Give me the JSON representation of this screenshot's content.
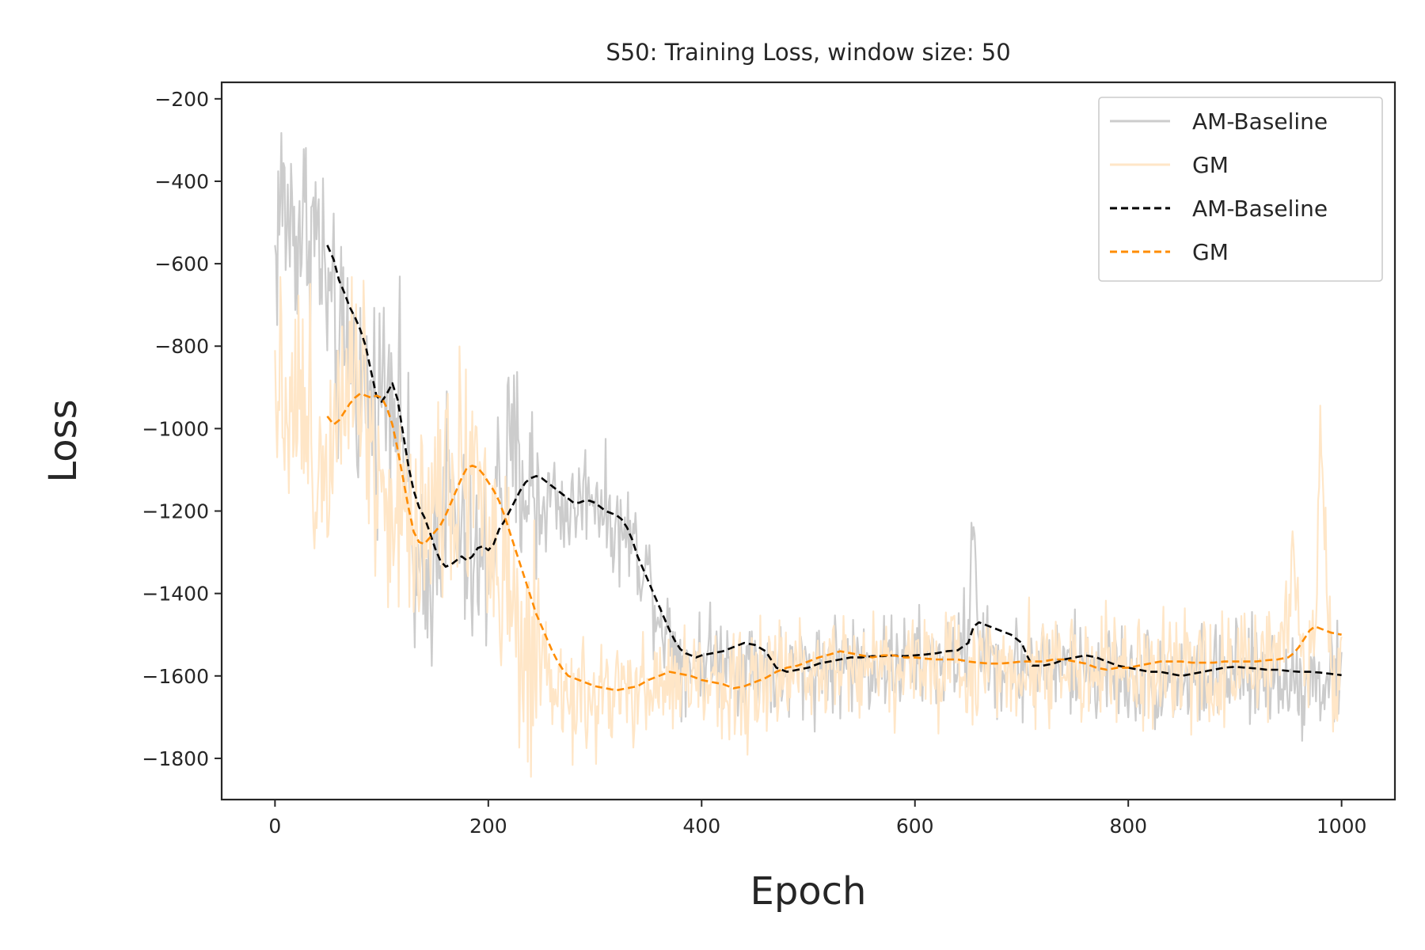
{
  "chart_data": {
    "type": "line",
    "title": "S50: Training Loss, window size: 50",
    "xlabel": "Epoch",
    "ylabel": "Loss",
    "xlim": [
      -50,
      1050
    ],
    "ylim": [
      -1900,
      -160
    ],
    "xticks": [
      0,
      200,
      400,
      600,
      800,
      1000
    ],
    "yticks": [
      -200,
      -400,
      -600,
      -800,
      -1000,
      -1200,
      -1400,
      -1600,
      -1800
    ],
    "grid": false,
    "legend_position": "top-right",
    "series": [
      {
        "name": "AM-Baseline",
        "style": "solid",
        "color": "#cccccc",
        "noise": 90,
        "x": [
          0,
          5,
          10,
          20,
          30,
          40,
          50,
          60,
          70,
          80,
          90,
          100,
          110,
          120,
          130,
          140,
          150,
          160,
          170,
          180,
          190,
          200,
          210,
          220,
          230,
          240,
          250,
          260,
          270,
          280,
          290,
          300,
          310,
          320,
          330,
          340,
          350,
          360,
          370,
          380,
          390,
          400,
          420,
          440,
          460,
          480,
          500,
          520,
          540,
          560,
          580,
          600,
          620,
          640,
          650,
          655,
          660,
          665,
          680,
          700,
          720,
          740,
          760,
          780,
          800,
          820,
          840,
          860,
          880,
          900,
          920,
          940,
          960,
          980,
          1000
        ],
        "y": [
          -600,
          -430,
          -480,
          -520,
          -500,
          -540,
          -700,
          -850,
          -800,
          -900,
          -950,
          -900,
          -850,
          -1000,
          -1350,
          -1450,
          -1250,
          -1150,
          -1250,
          -1300,
          -1350,
          -1300,
          -1150,
          -1100,
          -1100,
          -1150,
          -1200,
          -1150,
          -1200,
          -1200,
          -1150,
          -1150,
          -1200,
          -1250,
          -1250,
          -1300,
          -1350,
          -1450,
          -1500,
          -1550,
          -1560,
          -1550,
          -1560,
          -1570,
          -1580,
          -1600,
          -1580,
          -1570,
          -1570,
          -1570,
          -1570,
          -1570,
          -1560,
          -1550,
          -1500,
          -1200,
          -1500,
          -1560,
          -1580,
          -1580,
          -1580,
          -1580,
          -1580,
          -1590,
          -1600,
          -1600,
          -1610,
          -1600,
          -1600,
          -1600,
          -1600,
          -1600,
          -1610,
          -1610,
          -1610
        ]
      },
      {
        "name": "GM",
        "style": "solid",
        "color": "#ffe6c7",
        "noise": 100,
        "x": [
          0,
          5,
          10,
          20,
          30,
          40,
          50,
          60,
          70,
          80,
          90,
          100,
          110,
          120,
          130,
          140,
          150,
          160,
          170,
          180,
          190,
          200,
          210,
          220,
          230,
          240,
          250,
          260,
          270,
          280,
          290,
          300,
          320,
          340,
          360,
          380,
          400,
          420,
          440,
          460,
          480,
          500,
          520,
          540,
          560,
          580,
          600,
          620,
          640,
          660,
          680,
          700,
          720,
          740,
          760,
          780,
          800,
          820,
          840,
          860,
          880,
          900,
          920,
          940,
          950,
          955,
          960,
          965,
          975,
          980,
          990,
          1000
        ],
        "y": [
          -800,
          -900,
          -900,
          -900,
          -1000,
          -1100,
          -1050,
          -850,
          -800,
          -850,
          -1000,
          -1150,
          -1200,
          -1250,
          -1200,
          -1200,
          -1150,
          -1100,
          -1100,
          -1050,
          -1100,
          -1250,
          -1350,
          -1450,
          -1550,
          -1600,
          -1600,
          -1650,
          -1650,
          -1650,
          -1680,
          -1650,
          -1650,
          -1650,
          -1620,
          -1610,
          -1610,
          -1610,
          -1620,
          -1610,
          -1600,
          -1570,
          -1560,
          -1560,
          -1570,
          -1570,
          -1570,
          -1580,
          -1580,
          -1580,
          -1570,
          -1570,
          -1570,
          -1570,
          -1580,
          -1590,
          -1600,
          -1600,
          -1600,
          -1590,
          -1590,
          -1590,
          -1580,
          -1560,
          -1450,
          -1250,
          -1450,
          -1570,
          -1500,
          -1050,
          -1550,
          -1600
        ]
      },
      {
        "name": "AM-Baseline",
        "style": "dashed",
        "color": "#000000",
        "x": [
          49,
          55,
          60,
          65,
          70,
          75,
          80,
          85,
          90,
          95,
          100,
          105,
          110,
          115,
          120,
          125,
          130,
          135,
          140,
          145,
          150,
          155,
          160,
          165,
          170,
          175,
          180,
          185,
          190,
          195,
          200,
          205,
          210,
          215,
          220,
          225,
          230,
          235,
          240,
          245,
          250,
          255,
          260,
          265,
          270,
          275,
          280,
          285,
          290,
          295,
          300,
          305,
          310,
          315,
          320,
          325,
          330,
          335,
          340,
          345,
          350,
          355,
          360,
          365,
          370,
          375,
          380,
          385,
          390,
          395,
          400,
          410,
          420,
          430,
          440,
          450,
          460,
          470,
          480,
          490,
          500,
          510,
          520,
          530,
          540,
          550,
          560,
          570,
          580,
          590,
          600,
          610,
          620,
          630,
          640,
          650,
          655,
          660,
          670,
          680,
          690,
          700,
          705,
          710,
          720,
          730,
          740,
          750,
          760,
          770,
          780,
          790,
          800,
          810,
          820,
          830,
          840,
          850,
          860,
          870,
          880,
          890,
          900,
          910,
          920,
          930,
          940,
          950,
          960,
          970,
          980,
          990,
          1000
        ],
        "y": [
          -555,
          -590,
          -640,
          -670,
          -705,
          -730,
          -760,
          -800,
          -860,
          -920,
          -935,
          -915,
          -890,
          -930,
          -1010,
          -1090,
          -1150,
          -1190,
          -1215,
          -1250,
          -1290,
          -1320,
          -1335,
          -1330,
          -1320,
          -1310,
          -1320,
          -1310,
          -1290,
          -1285,
          -1295,
          -1280,
          -1245,
          -1225,
          -1200,
          -1175,
          -1150,
          -1130,
          -1120,
          -1115,
          -1120,
          -1130,
          -1140,
          -1150,
          -1160,
          -1170,
          -1180,
          -1180,
          -1175,
          -1175,
          -1180,
          -1190,
          -1200,
          -1205,
          -1210,
          -1220,
          -1240,
          -1270,
          -1310,
          -1340,
          -1370,
          -1400,
          -1430,
          -1460,
          -1490,
          -1515,
          -1535,
          -1545,
          -1550,
          -1555,
          -1550,
          -1545,
          -1540,
          -1530,
          -1520,
          -1525,
          -1540,
          -1580,
          -1590,
          -1585,
          -1580,
          -1570,
          -1565,
          -1560,
          -1555,
          -1555,
          -1552,
          -1552,
          -1550,
          -1552,
          -1550,
          -1548,
          -1545,
          -1540,
          -1538,
          -1520,
          -1480,
          -1470,
          -1480,
          -1490,
          -1500,
          -1520,
          -1550,
          -1575,
          -1575,
          -1570,
          -1560,
          -1555,
          -1550,
          -1555,
          -1565,
          -1575,
          -1580,
          -1585,
          -1590,
          -1590,
          -1595,
          -1600,
          -1595,
          -1590,
          -1585,
          -1580,
          -1578,
          -1580,
          -1582,
          -1585,
          -1585,
          -1588,
          -1590,
          -1590,
          -1592,
          -1595,
          -1598
        ]
      },
      {
        "name": "GM",
        "style": "dashed",
        "color": "#ff8c00",
        "x": [
          49,
          55,
          60,
          65,
          70,
          75,
          80,
          85,
          90,
          95,
          100,
          105,
          110,
          115,
          120,
          125,
          130,
          135,
          140,
          145,
          150,
          155,
          160,
          165,
          170,
          175,
          180,
          185,
          190,
          195,
          200,
          205,
          210,
          215,
          220,
          225,
          230,
          235,
          240,
          245,
          250,
          255,
          260,
          265,
          270,
          275,
          280,
          285,
          290,
          295,
          300,
          310,
          320,
          330,
          340,
          350,
          360,
          370,
          380,
          390,
          400,
          410,
          420,
          430,
          440,
          450,
          460,
          470,
          480,
          490,
          500,
          510,
          520,
          530,
          540,
          550,
          560,
          570,
          580,
          590,
          600,
          610,
          620,
          630,
          640,
          650,
          660,
          670,
          680,
          690,
          700,
          710,
          720,
          730,
          740,
          750,
          760,
          770,
          780,
          790,
          800,
          810,
          820,
          830,
          840,
          850,
          860,
          870,
          880,
          890,
          900,
          910,
          920,
          930,
          940,
          950,
          955,
          960,
          965,
          970,
          975,
          980,
          985,
          990,
          1000
        ],
        "y": [
          -970,
          -990,
          -980,
          -960,
          -940,
          -925,
          -915,
          -920,
          -925,
          -920,
          -925,
          -950,
          -990,
          -1050,
          -1120,
          -1190,
          -1250,
          -1275,
          -1280,
          -1265,
          -1250,
          -1235,
          -1210,
          -1180,
          -1150,
          -1120,
          -1095,
          -1090,
          -1095,
          -1110,
          -1130,
          -1150,
          -1175,
          -1210,
          -1250,
          -1290,
          -1330,
          -1370,
          -1410,
          -1450,
          -1480,
          -1510,
          -1540,
          -1565,
          -1585,
          -1600,
          -1605,
          -1610,
          -1615,
          -1620,
          -1625,
          -1630,
          -1635,
          -1630,
          -1625,
          -1610,
          -1600,
          -1590,
          -1595,
          -1600,
          -1610,
          -1615,
          -1620,
          -1630,
          -1625,
          -1615,
          -1605,
          -1590,
          -1580,
          -1575,
          -1565,
          -1555,
          -1548,
          -1540,
          -1545,
          -1550,
          -1555,
          -1550,
          -1550,
          -1555,
          -1555,
          -1558,
          -1560,
          -1560,
          -1560,
          -1565,
          -1568,
          -1570,
          -1570,
          -1568,
          -1565,
          -1565,
          -1565,
          -1560,
          -1560,
          -1565,
          -1570,
          -1580,
          -1585,
          -1580,
          -1580,
          -1575,
          -1570,
          -1565,
          -1565,
          -1565,
          -1568,
          -1568,
          -1568,
          -1565,
          -1565,
          -1565,
          -1565,
          -1562,
          -1560,
          -1555,
          -1545,
          -1530,
          -1510,
          -1490,
          -1480,
          -1485,
          -1490,
          -1495,
          -1500
        ]
      }
    ]
  }
}
